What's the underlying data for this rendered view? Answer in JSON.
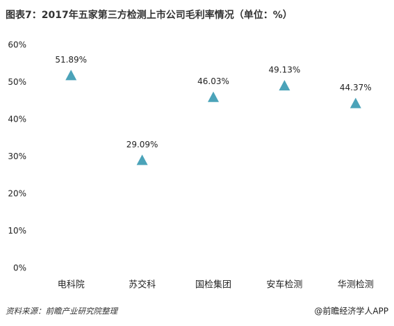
{
  "chart_data": {
    "type": "scatter",
    "title": "图表7：2017年五家第三方检测上市公司毛利率情况（单位：%）",
    "categories": [
      "电科院",
      "苏交科",
      "国检集团",
      "安车检测",
      "华测检测"
    ],
    "values": [
      51.89,
      29.09,
      46.03,
      49.13,
      44.37
    ],
    "value_labels": [
      "51.89%",
      "29.09%",
      "46.03%",
      "49.13%",
      "44.37%"
    ],
    "color": "#4ba3b9",
    "marker": "triangle",
    "ylim": [
      0,
      60
    ],
    "yticks": [
      {
        "value": 0,
        "label": "0%"
      },
      {
        "value": 10,
        "label": "10%"
      },
      {
        "value": 20,
        "label": "20%"
      },
      {
        "value": 30,
        "label": "30%"
      },
      {
        "value": 40,
        "label": "40%"
      },
      {
        "value": 50,
        "label": "50%"
      },
      {
        "value": 60,
        "label": "60%"
      }
    ],
    "grid": false,
    "source": "资料来源：前瞻产业研究院整理",
    "credit": "@前瞻经济学人APP"
  }
}
